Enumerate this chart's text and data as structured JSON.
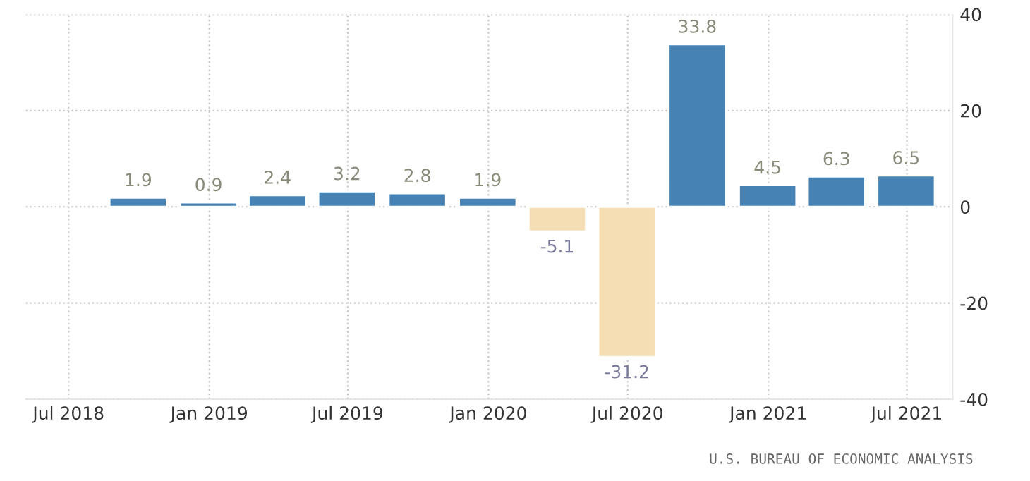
{
  "chart_data": {
    "type": "bar",
    "x": [
      "2018-09-30",
      "2018-12-31",
      "2019-03-31",
      "2019-06-30",
      "2019-09-30",
      "2019-12-31",
      "2020-03-31",
      "2020-06-30",
      "2020-09-30",
      "2020-12-31",
      "2021-03-31",
      "2021-06-30"
    ],
    "values": [
      1.9,
      0.9,
      2.4,
      3.2,
      2.8,
      1.9,
      -5.1,
      -31.2,
      33.8,
      4.5,
      6.3,
      6.5
    ],
    "colors": [
      "#4682b4",
      "#4682b4",
      "#4682b4",
      "#4682b4",
      "#4682b4",
      "#4682b4",
      "#f5deb3",
      "#f5deb3",
      "#4682b4",
      "#4682b4",
      "#4682b4",
      "#4682b4"
    ],
    "data_labels": true,
    "xlim": [
      "2018-05-06",
      "2021-08-30"
    ],
    "xticks": [
      {
        "value": "2018-07-01",
        "label": "Jul 2018"
      },
      {
        "value": "2019-01-01",
        "label": "Jan 2019"
      },
      {
        "value": "2019-07-01",
        "label": "Jul 2019"
      },
      {
        "value": "2020-01-01",
        "label": "Jan 2020"
      },
      {
        "value": "2020-07-01",
        "label": "Jul 2020"
      },
      {
        "value": "2021-01-01",
        "label": "Jan 2021"
      },
      {
        "value": "2021-07-01",
        "label": "Jul 2021"
      }
    ],
    "ylim": [
      -40,
      40
    ],
    "yticks": [
      -40,
      -20,
      0,
      20,
      40
    ],
    "grid": true,
    "line_style": "dotted",
    "annotations": [
      "U.S. BUREAU OF ECONOMIC ANALYSIS"
    ]
  }
}
